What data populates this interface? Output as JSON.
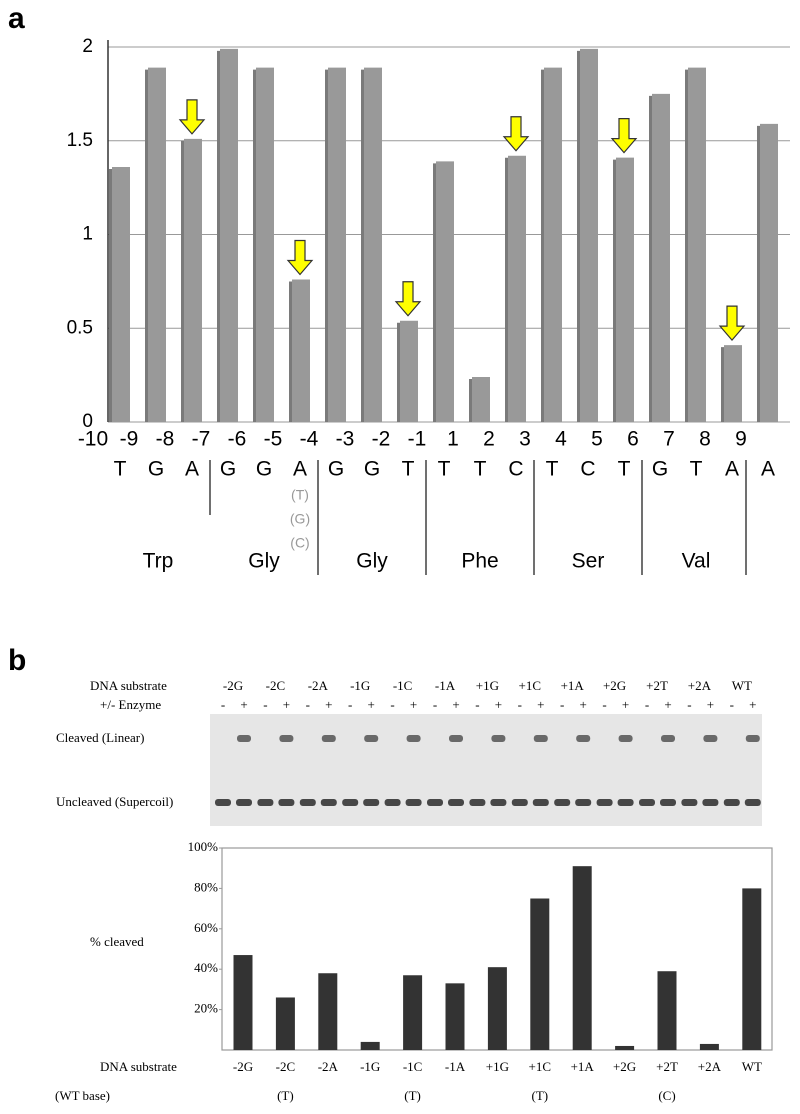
{
  "chart_data": [
    {
      "type": "bar",
      "label": "a",
      "categories": [
        "-10",
        "-9",
        "-8",
        "-7",
        "-6",
        "-5",
        "-4",
        "-3",
        "-2",
        "-1",
        "1",
        "2",
        "3",
        "4",
        "5",
        "6",
        "7",
        "8",
        "9"
      ],
      "bases": [
        "T",
        "G",
        "A",
        "G",
        "G",
        "A",
        "G",
        "G",
        "T",
        "T",
        "T",
        "C",
        "T",
        "C",
        "T",
        "G",
        "T",
        "A",
        "A"
      ],
      "values": [
        1.36,
        1.89,
        1.51,
        1.99,
        1.89,
        0.76,
        1.89,
        1.89,
        0.54,
        1.39,
        0.24,
        1.42,
        1.89,
        1.99,
        1.41,
        1.75,
        1.89,
        0.41,
        1.59
      ],
      "color": "#999999",
      "codons": [
        "Trp",
        "Gly",
        "Gly",
        "Phe",
        "Ser",
        "Val"
      ],
      "variants": [
        "(T)",
        "(G)",
        "(C)"
      ],
      "arrows": [
        2,
        5,
        8,
        11,
        14,
        17
      ],
      "ylim": [
        0,
        2
      ],
      "yticks": [
        0,
        0.5,
        1,
        1.5,
        2
      ],
      "grid": true
    },
    {
      "type": "bar",
      "label": "b",
      "categories": [
        "-2G",
        "-2C",
        "-2A",
        "-1G",
        "-1C",
        "-1A",
        "+1G",
        "+1C",
        "+1A",
        "+2G",
        "+2T",
        "+2A",
        "WT"
      ],
      "values": [
        47,
        26,
        38,
        4,
        37,
        33,
        41,
        75,
        91,
        2,
        39,
        3,
        80
      ],
      "color": "#333333",
      "wt_base": [
        null,
        "(T)",
        null,
        null,
        "(T)",
        null,
        null,
        "(T)",
        null,
        null,
        "(C)",
        null,
        null
      ],
      "x_label": "DNA substrate",
      "wt_label": "(WT base)",
      "y_label": "% cleaved",
      "gel": {
        "enzyme_label": "+/- Enzyme",
        "signs": [
          "-",
          "+"
        ],
        "cleaved_label": "Cleaved (Linear)",
        "uncleaved_label": "Uncleaved (Supercoil)"
      },
      "ylim": [
        0,
        100
      ],
      "yticks": [
        {
          "value": 20,
          "label": "20%"
        },
        {
          "value": 40,
          "label": "40%"
        },
        {
          "value": 60,
          "label": "60%"
        },
        {
          "value": 80,
          "label": "80%"
        },
        {
          "value": 100,
          "label": "100%"
        }
      ]
    }
  ]
}
